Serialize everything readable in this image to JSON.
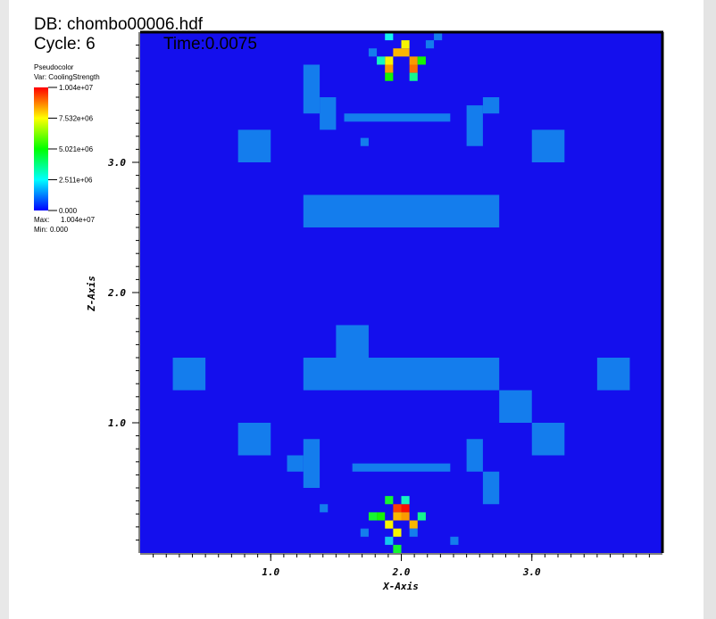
{
  "chart_data": {
    "type": "pseudocolor",
    "db_label": "DB: chombo00006.hdf",
    "cycle_label": "Cycle: 6",
    "time_label": "Time:0.0075",
    "plot_name": "Pseudocolor",
    "var_label": "Var: CoolingStrength",
    "x_label": "X-Axis",
    "y_label": "Z-Axis",
    "xlim": [
      0,
      4
    ],
    "ylim": [
      0,
      4
    ],
    "xticks": [
      {
        "value": 1,
        "label": "1.0"
      },
      {
        "value": 2,
        "label": "2.0"
      },
      {
        "value": 3,
        "label": "3.0"
      }
    ],
    "yticks": [
      {
        "value": 1,
        "label": "1.0"
      },
      {
        "value": 2,
        "label": "2.0"
      },
      {
        "value": 3,
        "label": "3.0"
      }
    ],
    "minor_tick_step": 0.1,
    "colormap": [
      "#0000ff",
      "#00ffff",
      "#00ff00",
      "#ffff00",
      "#ff0000"
    ],
    "clim": [
      0,
      10040000
    ],
    "cticks": [
      {
        "value": 10040000,
        "label": "1.004e+07"
      },
      {
        "value": 7532000,
        "label": "7.532e+06"
      },
      {
        "value": 5021000,
        "label": "5.021e+06"
      },
      {
        "value": 2511000,
        "label": "2.511e+06"
      },
      {
        "value": 0,
        "label": "0.000"
      }
    ],
    "max_label": "Max:",
    "max": {
      "value": 10040000,
      "label": "1.004e+07"
    },
    "min_label": "Min:",
    "min": {
      "value": 0,
      "label": "0.000"
    },
    "blocks": [
      {
        "x": [
          0.75,
          1.0
        ],
        "y": [
          3.0,
          3.25
        ],
        "value": 1200000
      },
      {
        "x": [
          3.0,
          3.25
        ],
        "y": [
          3.0,
          3.25
        ],
        "value": 1200000
      },
      {
        "x": [
          1.25,
          2.75
        ],
        "y": [
          2.5,
          2.75
        ],
        "value": 1200000
      },
      {
        "x": [
          1.25,
          2.75
        ],
        "y": [
          1.25,
          1.5
        ],
        "value": 1200000
      },
      {
        "x": [
          1.5,
          1.75
        ],
        "y": [
          1.5,
          1.75
        ],
        "value": 1200000
      },
      {
        "x": [
          0.25,
          0.5
        ],
        "y": [
          1.25,
          1.5
        ],
        "value": 1200000
      },
      {
        "x": [
          3.5,
          3.75
        ],
        "y": [
          1.25,
          1.5
        ],
        "value": 1200000
      },
      {
        "x": [
          2.75,
          3.0
        ],
        "y": [
          1.0,
          1.25
        ],
        "value": 1200000
      },
      {
        "x": [
          0.75,
          1.0
        ],
        "y": [
          0.75,
          1.0
        ],
        "value": 1200000
      },
      {
        "x": [
          3.0,
          3.25
        ],
        "y": [
          0.75,
          1.0
        ],
        "value": 1200000
      },
      {
        "x": [
          1.25,
          1.375
        ],
        "y": [
          3.375,
          3.75
        ],
        "value": 1200000
      },
      {
        "x": [
          1.375,
          1.5
        ],
        "y": [
          3.25,
          3.5
        ],
        "value": 1200000
      },
      {
        "x": [
          1.5625,
          2.375
        ],
        "y": [
          3.3125,
          3.375
        ],
        "value": 1200000
      },
      {
        "x": [
          2.5,
          2.625
        ],
        "y": [
          3.125,
          3.4375
        ],
        "value": 1200000
      },
      {
        "x": [
          2.625,
          2.75
        ],
        "y": [
          3.375,
          3.5
        ],
        "value": 1200000
      },
      {
        "x": [
          1.6875,
          1.75
        ],
        "y": [
          3.125,
          3.1875
        ],
        "value": 1200000
      },
      {
        "x": [
          1.25,
          1.375
        ],
        "y": [
          0.5,
          0.875
        ],
        "value": 1200000
      },
      {
        "x": [
          1.125,
          1.25
        ],
        "y": [
          0.625,
          0.75
        ],
        "value": 1200000
      },
      {
        "x": [
          1.625,
          2.375
        ],
        "y": [
          0.625,
          0.6875
        ],
        "value": 1200000
      },
      {
        "x": [
          2.5,
          2.625
        ],
        "y": [
          0.625,
          0.875
        ],
        "value": 1200000
      },
      {
        "x": [
          2.625,
          2.75
        ],
        "y": [
          0.375,
          0.625
        ],
        "value": 1200000
      },
      {
        "x": [
          1.375,
          1.4375
        ],
        "y": [
          0.3125,
          0.375
        ],
        "value": 1200000
      }
    ],
    "cell_size": 0.0625,
    "cells": [
      [
        1.9375,
        3.8125,
        8200000
      ],
      [
        2.0,
        3.8125,
        8200000
      ],
      [
        2.0625,
        3.75,
        8500000
      ],
      [
        2.0,
        3.875,
        7500000
      ],
      [
        1.875,
        3.75,
        7500000
      ],
      [
        2.125,
        3.75,
        5000000
      ],
      [
        1.8125,
        3.75,
        3000000
      ],
      [
        1.875,
        3.6875,
        8500000
      ],
      [
        2.0625,
        3.6875,
        9000000
      ],
      [
        1.875,
        3.625,
        5000000
      ],
      [
        2.0625,
        3.625,
        3500000
      ],
      [
        1.875,
        3.9375,
        2500000
      ],
      [
        2.1875,
        3.875,
        1200000
      ],
      [
        1.75,
        3.8125,
        1200000
      ],
      [
        2.25,
        3.9375,
        1200000
      ],
      [
        1.9375,
        0.3125,
        9500000
      ],
      [
        2.0,
        0.3125,
        10040000
      ],
      [
        1.9375,
        0.25,
        8200000
      ],
      [
        2.0,
        0.25,
        8500000
      ],
      [
        2.0625,
        0.1875,
        8200000
      ],
      [
        1.875,
        0.1875,
        7500000
      ],
      [
        1.8125,
        0.25,
        5000000
      ],
      [
        1.9375,
        0.125,
        7500000
      ],
      [
        2.125,
        0.25,
        3500000
      ],
      [
        1.75,
        0.25,
        4500000
      ],
      [
        1.875,
        0.375,
        4500000
      ],
      [
        2.0,
        0.375,
        3000000
      ],
      [
        1.875,
        0.0625,
        2000000
      ],
      [
        1.9375,
        0.0,
        4500000
      ],
      [
        2.0625,
        0.125,
        1200000
      ],
      [
        1.6875,
        0.125,
        1200000
      ],
      [
        2.375,
        0.0625,
        1200000
      ]
    ]
  }
}
